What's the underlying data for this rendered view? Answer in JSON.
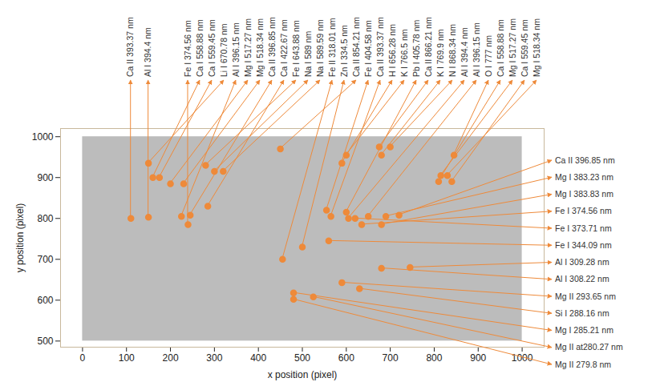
{
  "chart_data": {
    "type": "scatter",
    "x_label": "x position (pixel)",
    "y_label": "y position (pixel)",
    "xlim": [
      -50,
      1050
    ],
    "ylim": [
      485,
      1020
    ],
    "xticks": [
      0,
      100,
      200,
      300,
      400,
      500,
      600,
      700,
      800,
      900,
      1000
    ],
    "yticks": [
      500,
      600,
      700,
      800,
      900,
      1000
    ],
    "color": "#ee8a3a",
    "marker": "circle",
    "grid": false,
    "image": {
      "x": [
        0,
        1000
      ],
      "y": [
        500,
        1000
      ]
    },
    "annotations": {
      "top": [
        {
          "label": "Ca II 393.37 nm",
          "x": 110,
          "y": 800
        },
        {
          "label": "Al I 394.4 nm",
          "x": 150,
          "y": 803
        },
        {
          "label": "Fe I 374.56 nm",
          "x": 240,
          "y": 785
        },
        {
          "label": "Ca I 558.88 nm",
          "x": 160,
          "y": 900
        },
        {
          "label": "Ca I 559.45 nm",
          "x": 175,
          "y": 900
        },
        {
          "label": "Li I 670.78 nm",
          "x": 150,
          "y": 935
        },
        {
          "label": "Al I 396.15 nm",
          "x": 225,
          "y": 805
        },
        {
          "label": "Mg I 517.27 nm",
          "x": 200,
          "y": 885
        },
        {
          "label": "Mg I 518.34 nm",
          "x": 230,
          "y": 885
        },
        {
          "label": "Ca II 396.85 nm",
          "x": 245,
          "y": 808
        },
        {
          "label": "Ca I 422.67 nm",
          "x": 285,
          "y": 830
        },
        {
          "label": "Fe I 643.88 nm",
          "x": 280,
          "y": 930
        },
        {
          "label": "Na I 589 nm",
          "x": 300,
          "y": 915
        },
        {
          "label": "Na I 589.59 nm",
          "x": 320,
          "y": 915
        },
        {
          "label": "Fe II 318.01 nm",
          "x": 455,
          "y": 700
        },
        {
          "label": "Zn I 334.5 nm",
          "x": 500,
          "y": 730
        },
        {
          "label": "Ca II 854.21 nm",
          "x": 450,
          "y": 970
        },
        {
          "label": "Fe I 404.58 nm",
          "x": 555,
          "y": 820
        },
        {
          "label": "Ca II 393.37 nm",
          "x": 565,
          "y": 805
        },
        {
          "label": "H I 656.28 nm",
          "x": 590,
          "y": 935
        },
        {
          "label": "K I 766.5 nm",
          "x": 600,
          "y": 955
        },
        {
          "label": "Pb I 405.78 nm",
          "x": 600,
          "y": 815
        },
        {
          "label": "Ca II 866.21 nm",
          "x": 675,
          "y": 975
        },
        {
          "label": "K I 769.9 nm",
          "x": 680,
          "y": 955
        },
        {
          "label": "N I 868.34 nm",
          "x": 700,
          "y": 975
        },
        {
          "label": "Al I 394.4 nm",
          "x": 605,
          "y": 800
        },
        {
          "label": "Al I 396.15 nm",
          "x": 650,
          "y": 805
        },
        {
          "label": "O I 777 nm",
          "x": 845,
          "y": 955
        },
        {
          "label": "Ca I 558.88 nm",
          "x": 810,
          "y": 890
        },
        {
          "label": "Mg I 517.27 nm",
          "x": 815,
          "y": 905
        },
        {
          "label": "Ca I 559.45 nm",
          "x": 840,
          "y": 890
        },
        {
          "label": "Mg I 518.34 nm",
          "x": 830,
          "y": 905
        }
      ],
      "right": [
        {
          "label": "Ca II 396.85 nm",
          "x": 720,
          "y": 808
        },
        {
          "label": "Mg I 383.23 nm",
          "x": 690,
          "y": 805
        },
        {
          "label": "Mg I 383.83 nm",
          "x": 680,
          "y": 785
        },
        {
          "label": "Fe I 374.56 nm",
          "x": 635,
          "y": 785
        },
        {
          "label": "Fe I 373.71 nm",
          "x": 620,
          "y": 800
        },
        {
          "label": "Fe I 344.09 nm",
          "x": 560,
          "y": 745
        },
        {
          "label": "Al I 309.28 nm",
          "x": 745,
          "y": 680
        },
        {
          "label": "Al I 308.22 nm",
          "x": 680,
          "y": 678
        },
        {
          "label": "Mg II 293.65 nm",
          "x": 590,
          "y": 643
        },
        {
          "label": "Si I 288.16 nm",
          "x": 630,
          "y": 628
        },
        {
          "label": "Mg I 285.21 nm",
          "x": 480,
          "y": 618
        },
        {
          "label": "Mg II at280.27 nm",
          "x": 525,
          "y": 608
        },
        {
          "label": "Mg II 279.8 nm",
          "x": 480,
          "y": 602
        }
      ]
    }
  }
}
